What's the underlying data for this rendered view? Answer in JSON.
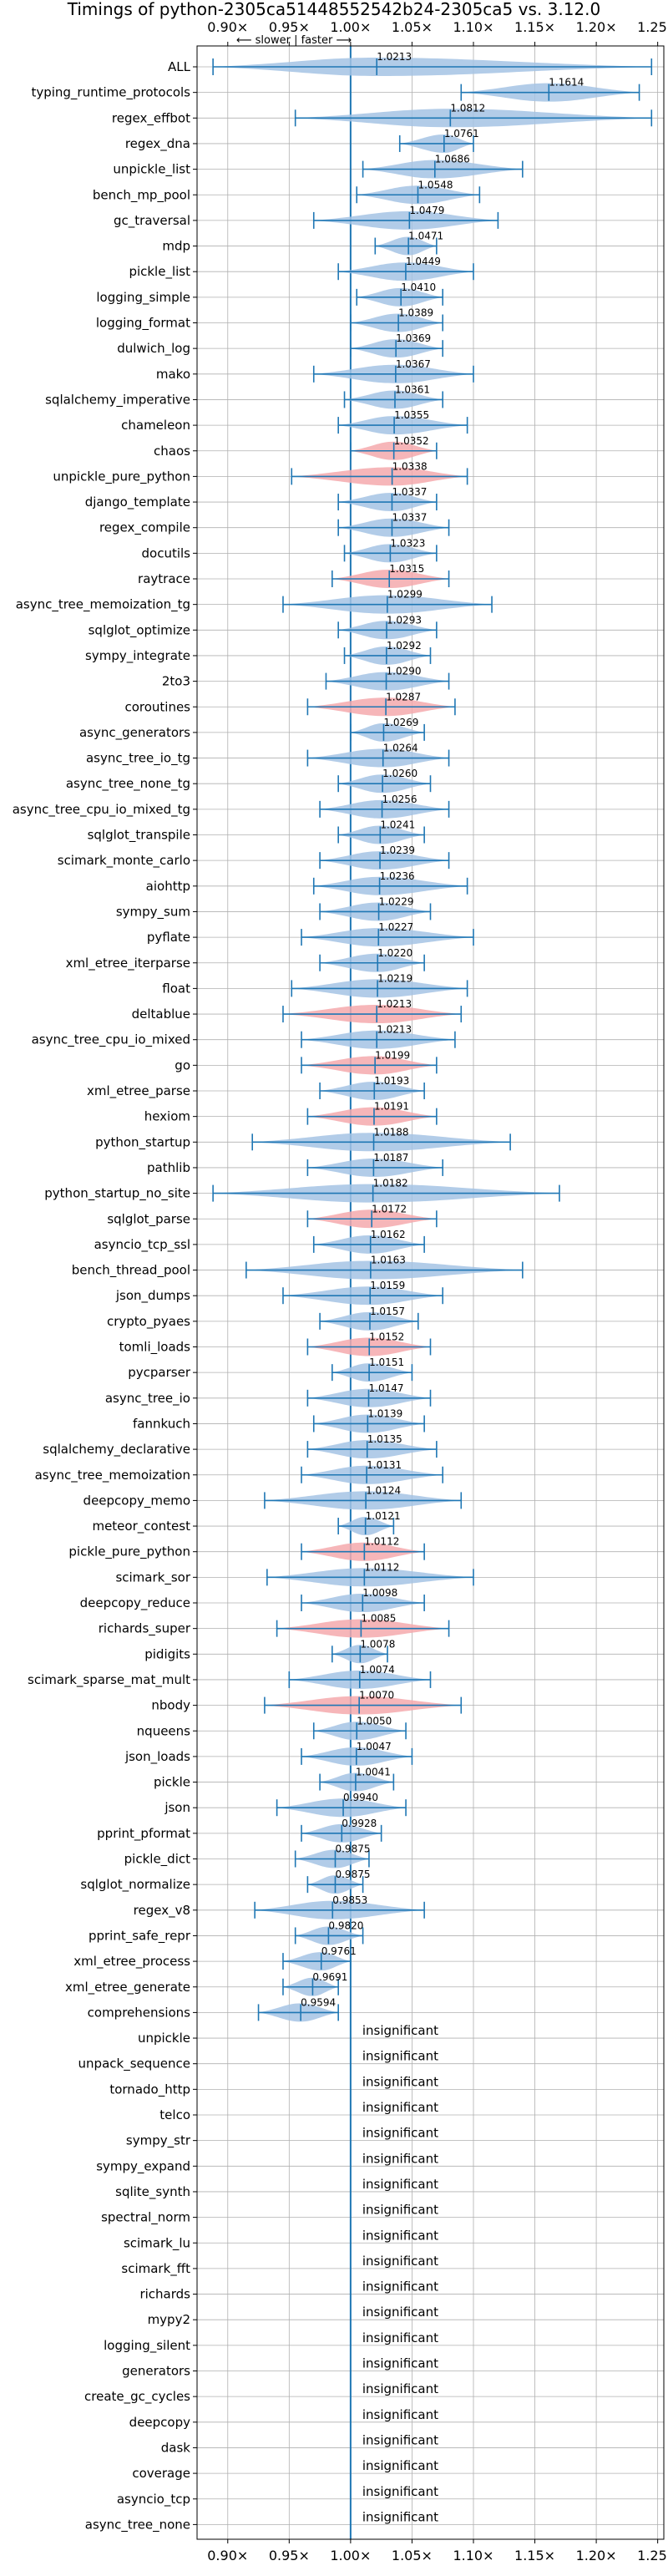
{
  "chart_data": {
    "type": "violin",
    "title": "Timings of python-2305ca51448552542b24-2305ca5 vs. 3.12.0",
    "direction_note": "⟵ slower | faster ⟶",
    "xlim": [
      0.875,
      1.255
    ],
    "x_ticks": [
      0.9,
      0.95,
      1.0,
      1.05,
      1.1,
      1.15,
      1.2,
      1.25
    ],
    "x_tick_labels": [
      "0.90×",
      "0.95×",
      "1.00×",
      "1.05×",
      "1.10×",
      "1.15×",
      "1.20×",
      "1.25×"
    ],
    "reference_line": 1.0,
    "colors": {
      "faster": "#a4c3e4",
      "slower": "#f4a9ad",
      "line": "#1f77b4",
      "grid": "#b0b0b0"
    },
    "insignificant_label": "insignificant",
    "benchmarks": [
      {
        "name": "ALL",
        "label": "1.0213",
        "mean": 1.0213,
        "min": 0.888,
        "max": 1.245,
        "color": "faster"
      },
      {
        "name": "typing_runtime_protocols",
        "label": "1.1614",
        "mean": 1.1614,
        "min": 1.09,
        "max": 1.235,
        "color": "faster"
      },
      {
        "name": "regex_effbot",
        "label": "1.0812",
        "mean": 1.0812,
        "min": 0.955,
        "max": 1.245,
        "color": "faster"
      },
      {
        "name": "regex_dna",
        "label": "1.0761",
        "mean": 1.0761,
        "min": 1.04,
        "max": 1.1,
        "color": "faster"
      },
      {
        "name": "unpickle_list",
        "label": "1.0686",
        "mean": 1.0686,
        "min": 1.01,
        "max": 1.14,
        "color": "faster"
      },
      {
        "name": "bench_mp_pool",
        "label": "1.0548",
        "mean": 1.0548,
        "min": 1.005,
        "max": 1.105,
        "color": "faster"
      },
      {
        "name": "gc_traversal",
        "label": "1.0479",
        "mean": 1.0479,
        "min": 0.97,
        "max": 1.12,
        "color": "faster"
      },
      {
        "name": "mdp",
        "label": "1.0471",
        "mean": 1.0471,
        "min": 1.02,
        "max": 1.07,
        "color": "faster"
      },
      {
        "name": "pickle_list",
        "label": "1.0449",
        "mean": 1.0449,
        "min": 0.99,
        "max": 1.1,
        "color": "faster"
      },
      {
        "name": "logging_simple",
        "label": "1.0410",
        "mean": 1.041,
        "min": 1.005,
        "max": 1.075,
        "color": "faster"
      },
      {
        "name": "logging_format",
        "label": "1.0389",
        "mean": 1.0389,
        "min": 1.0,
        "max": 1.075,
        "color": "faster"
      },
      {
        "name": "dulwich_log",
        "label": "1.0369",
        "mean": 1.0369,
        "min": 1.0,
        "max": 1.075,
        "color": "faster"
      },
      {
        "name": "mako",
        "label": "1.0367",
        "mean": 1.0367,
        "min": 0.97,
        "max": 1.1,
        "color": "faster"
      },
      {
        "name": "sqlalchemy_imperative",
        "label": "1.0361",
        "mean": 1.0361,
        "min": 0.995,
        "max": 1.075,
        "color": "faster"
      },
      {
        "name": "chameleon",
        "label": "1.0355",
        "mean": 1.0355,
        "min": 0.99,
        "max": 1.095,
        "color": "faster"
      },
      {
        "name": "chaos",
        "label": "1.0352",
        "mean": 1.0352,
        "min": 1.0,
        "max": 1.07,
        "color": "slower"
      },
      {
        "name": "unpickle_pure_python",
        "label": "1.0338",
        "mean": 1.0338,
        "min": 0.952,
        "max": 1.095,
        "color": "slower"
      },
      {
        "name": "django_template",
        "label": "1.0337",
        "mean": 1.0337,
        "min": 0.99,
        "max": 1.07,
        "color": "faster"
      },
      {
        "name": "regex_compile",
        "label": "1.0337",
        "mean": 1.0337,
        "min": 0.99,
        "max": 1.08,
        "color": "faster"
      },
      {
        "name": "docutils",
        "label": "1.0323",
        "mean": 1.0323,
        "min": 0.995,
        "max": 1.07,
        "color": "faster"
      },
      {
        "name": "raytrace",
        "label": "1.0315",
        "mean": 1.0315,
        "min": 0.985,
        "max": 1.08,
        "color": "slower"
      },
      {
        "name": "async_tree_memoization_tg",
        "label": "1.0299",
        "mean": 1.0299,
        "min": 0.945,
        "max": 1.115,
        "color": "faster"
      },
      {
        "name": "sqlglot_optimize",
        "label": "1.0293",
        "mean": 1.0293,
        "min": 0.99,
        "max": 1.07,
        "color": "faster"
      },
      {
        "name": "sympy_integrate",
        "label": "1.0292",
        "mean": 1.0292,
        "min": 0.995,
        "max": 1.065,
        "color": "faster"
      },
      {
        "name": "2to3",
        "label": "1.0290",
        "mean": 1.029,
        "min": 0.98,
        "max": 1.08,
        "color": "faster"
      },
      {
        "name": "coroutines",
        "label": "1.0287",
        "mean": 1.0287,
        "min": 0.965,
        "max": 1.085,
        "color": "slower"
      },
      {
        "name": "async_generators",
        "label": "1.0269",
        "mean": 1.0269,
        "min": 1.0,
        "max": 1.06,
        "color": "faster"
      },
      {
        "name": "async_tree_io_tg",
        "label": "1.0264",
        "mean": 1.0264,
        "min": 0.965,
        "max": 1.08,
        "color": "faster"
      },
      {
        "name": "async_tree_none_tg",
        "label": "1.0260",
        "mean": 1.026,
        "min": 0.99,
        "max": 1.065,
        "color": "faster"
      },
      {
        "name": "async_tree_cpu_io_mixed_tg",
        "label": "1.0256",
        "mean": 1.0256,
        "min": 0.975,
        "max": 1.08,
        "color": "faster"
      },
      {
        "name": "sqlglot_transpile",
        "label": "1.0241",
        "mean": 1.0241,
        "min": 0.99,
        "max": 1.06,
        "color": "faster"
      },
      {
        "name": "scimark_monte_carlo",
        "label": "1.0239",
        "mean": 1.0239,
        "min": 0.975,
        "max": 1.08,
        "color": "faster"
      },
      {
        "name": "aiohttp",
        "label": "1.0236",
        "mean": 1.0236,
        "min": 0.97,
        "max": 1.095,
        "color": "faster"
      },
      {
        "name": "sympy_sum",
        "label": "1.0229",
        "mean": 1.0229,
        "min": 0.975,
        "max": 1.065,
        "color": "faster"
      },
      {
        "name": "pyflate",
        "label": "1.0227",
        "mean": 1.0227,
        "min": 0.96,
        "max": 1.1,
        "color": "faster"
      },
      {
        "name": "xml_etree_iterparse",
        "label": "1.0220",
        "mean": 1.022,
        "min": 0.975,
        "max": 1.06,
        "color": "faster"
      },
      {
        "name": "float",
        "label": "1.0219",
        "mean": 1.0219,
        "min": 0.952,
        "max": 1.095,
        "color": "faster"
      },
      {
        "name": "deltablue",
        "label": "1.0213",
        "mean": 1.0213,
        "min": 0.945,
        "max": 1.09,
        "color": "slower"
      },
      {
        "name": "async_tree_cpu_io_mixed",
        "label": "1.0213",
        "mean": 1.0213,
        "min": 0.96,
        "max": 1.085,
        "color": "faster"
      },
      {
        "name": "go",
        "label": "1.0199",
        "mean": 1.0199,
        "min": 0.96,
        "max": 1.07,
        "color": "slower"
      },
      {
        "name": "xml_etree_parse",
        "label": "1.0193",
        "mean": 1.0193,
        "min": 0.975,
        "max": 1.06,
        "color": "faster"
      },
      {
        "name": "hexiom",
        "label": "1.0191",
        "mean": 1.0191,
        "min": 0.965,
        "max": 1.07,
        "color": "slower"
      },
      {
        "name": "python_startup",
        "label": "1.0188",
        "mean": 1.0188,
        "min": 0.92,
        "max": 1.13,
        "color": "faster"
      },
      {
        "name": "pathlib",
        "label": "1.0187",
        "mean": 1.0187,
        "min": 0.965,
        "max": 1.075,
        "color": "faster"
      },
      {
        "name": "python_startup_no_site",
        "label": "1.0182",
        "mean": 1.0182,
        "min": 0.888,
        "max": 1.17,
        "color": "faster"
      },
      {
        "name": "sqlglot_parse",
        "label": "1.0172",
        "mean": 1.0172,
        "min": 0.965,
        "max": 1.07,
        "color": "slower"
      },
      {
        "name": "asyncio_tcp_ssl",
        "label": "1.0162",
        "mean": 1.0162,
        "min": 0.97,
        "max": 1.06,
        "color": "faster"
      },
      {
        "name": "bench_thread_pool",
        "label": "1.0163",
        "mean": 1.0163,
        "min": 0.915,
        "max": 1.14,
        "color": "faster"
      },
      {
        "name": "json_dumps",
        "label": "1.0159",
        "mean": 1.0159,
        "min": 0.945,
        "max": 1.075,
        "color": "faster"
      },
      {
        "name": "crypto_pyaes",
        "label": "1.0157",
        "mean": 1.0157,
        "min": 0.975,
        "max": 1.055,
        "color": "faster"
      },
      {
        "name": "tomli_loads",
        "label": "1.0152",
        "mean": 1.0152,
        "min": 0.965,
        "max": 1.065,
        "color": "slower"
      },
      {
        "name": "pycparser",
        "label": "1.0151",
        "mean": 1.0151,
        "min": 0.985,
        "max": 1.05,
        "color": "faster"
      },
      {
        "name": "async_tree_io",
        "label": "1.0147",
        "mean": 1.0147,
        "min": 0.965,
        "max": 1.065,
        "color": "faster"
      },
      {
        "name": "fannkuch",
        "label": "1.0139",
        "mean": 1.0139,
        "min": 0.97,
        "max": 1.06,
        "color": "faster"
      },
      {
        "name": "sqlalchemy_declarative",
        "label": "1.0135",
        "mean": 1.0135,
        "min": 0.965,
        "max": 1.07,
        "color": "faster"
      },
      {
        "name": "async_tree_memoization",
        "label": "1.0131",
        "mean": 1.0131,
        "min": 0.96,
        "max": 1.075,
        "color": "faster"
      },
      {
        "name": "deepcopy_memo",
        "label": "1.0124",
        "mean": 1.0124,
        "min": 0.93,
        "max": 1.09,
        "color": "faster"
      },
      {
        "name": "meteor_contest",
        "label": "1.0121",
        "mean": 1.0121,
        "min": 0.99,
        "max": 1.035,
        "color": "faster"
      },
      {
        "name": "pickle_pure_python",
        "label": "1.0112",
        "mean": 1.0112,
        "min": 0.96,
        "max": 1.06,
        "color": "slower"
      },
      {
        "name": "scimark_sor",
        "label": "1.0112",
        "mean": 1.0112,
        "min": 0.932,
        "max": 1.1,
        "color": "faster"
      },
      {
        "name": "deepcopy_reduce",
        "label": "1.0098",
        "mean": 1.0098,
        "min": 0.96,
        "max": 1.06,
        "color": "faster"
      },
      {
        "name": "richards_super",
        "label": "1.0085",
        "mean": 1.0085,
        "min": 0.94,
        "max": 1.08,
        "color": "slower"
      },
      {
        "name": "pidigits",
        "label": "1.0078",
        "mean": 1.0078,
        "min": 0.985,
        "max": 1.03,
        "color": "faster"
      },
      {
        "name": "scimark_sparse_mat_mult",
        "label": "1.0074",
        "mean": 1.0074,
        "min": 0.95,
        "max": 1.065,
        "color": "faster"
      },
      {
        "name": "nbody",
        "label": "1.0070",
        "mean": 1.007,
        "min": 0.93,
        "max": 1.09,
        "color": "slower"
      },
      {
        "name": "nqueens",
        "label": "1.0050",
        "mean": 1.005,
        "min": 0.97,
        "max": 1.045,
        "color": "faster"
      },
      {
        "name": "json_loads",
        "label": "1.0047",
        "mean": 1.0047,
        "min": 0.96,
        "max": 1.05,
        "color": "faster"
      },
      {
        "name": "pickle",
        "label": "1.0041",
        "mean": 1.0041,
        "min": 0.975,
        "max": 1.035,
        "color": "faster"
      },
      {
        "name": "json",
        "label": "0.9940",
        "mean": 0.994,
        "min": 0.94,
        "max": 1.045,
        "color": "faster"
      },
      {
        "name": "pprint_pformat",
        "label": "0.9928",
        "mean": 0.9928,
        "min": 0.96,
        "max": 1.025,
        "color": "faster"
      },
      {
        "name": "pickle_dict",
        "label": "0.9875",
        "mean": 0.9875,
        "min": 0.955,
        "max": 1.015,
        "color": "faster"
      },
      {
        "name": "sqlglot_normalize",
        "label": "0.9875",
        "mean": 0.9875,
        "min": 0.965,
        "max": 1.01,
        "color": "faster"
      },
      {
        "name": "regex_v8",
        "label": "0.9853",
        "mean": 0.9853,
        "min": 0.922,
        "max": 1.06,
        "color": "faster"
      },
      {
        "name": "pprint_safe_repr",
        "label": "0.9820",
        "mean": 0.982,
        "min": 0.955,
        "max": 1.01,
        "color": "faster"
      },
      {
        "name": "xml_etree_process",
        "label": "0.9761",
        "mean": 0.9761,
        "min": 0.945,
        "max": 1.0,
        "color": "faster"
      },
      {
        "name": "xml_etree_generate",
        "label": "0.9691",
        "mean": 0.9691,
        "min": 0.945,
        "max": 0.99,
        "color": "faster"
      },
      {
        "name": "comprehensions",
        "label": "0.9594",
        "mean": 0.9594,
        "min": 0.925,
        "max": 0.99,
        "color": "faster"
      },
      {
        "name": "unpickle",
        "label": "insignificant",
        "insignificant": true
      },
      {
        "name": "unpack_sequence",
        "label": "insignificant",
        "insignificant": true
      },
      {
        "name": "tornado_http",
        "label": "insignificant",
        "insignificant": true
      },
      {
        "name": "telco",
        "label": "insignificant",
        "insignificant": true
      },
      {
        "name": "sympy_str",
        "label": "insignificant",
        "insignificant": true
      },
      {
        "name": "sympy_expand",
        "label": "insignificant",
        "insignificant": true
      },
      {
        "name": "sqlite_synth",
        "label": "insignificant",
        "insignificant": true
      },
      {
        "name": "spectral_norm",
        "label": "insignificant",
        "insignificant": true
      },
      {
        "name": "scimark_lu",
        "label": "insignificant",
        "insignificant": true
      },
      {
        "name": "scimark_fft",
        "label": "insignificant",
        "insignificant": true
      },
      {
        "name": "richards",
        "label": "insignificant",
        "insignificant": true
      },
      {
        "name": "mypy2",
        "label": "insignificant",
        "insignificant": true
      },
      {
        "name": "logging_silent",
        "label": "insignificant",
        "insignificant": true
      },
      {
        "name": "generators",
        "label": "insignificant",
        "insignificant": true
      },
      {
        "name": "create_gc_cycles",
        "label": "insignificant",
        "insignificant": true
      },
      {
        "name": "deepcopy",
        "label": "insignificant",
        "insignificant": true
      },
      {
        "name": "dask",
        "label": "insignificant",
        "insignificant": true
      },
      {
        "name": "coverage",
        "label": "insignificant",
        "insignificant": true
      },
      {
        "name": "asyncio_tcp",
        "label": "insignificant",
        "insignificant": true
      },
      {
        "name": "async_tree_none",
        "label": "insignificant",
        "insignificant": true
      }
    ]
  }
}
